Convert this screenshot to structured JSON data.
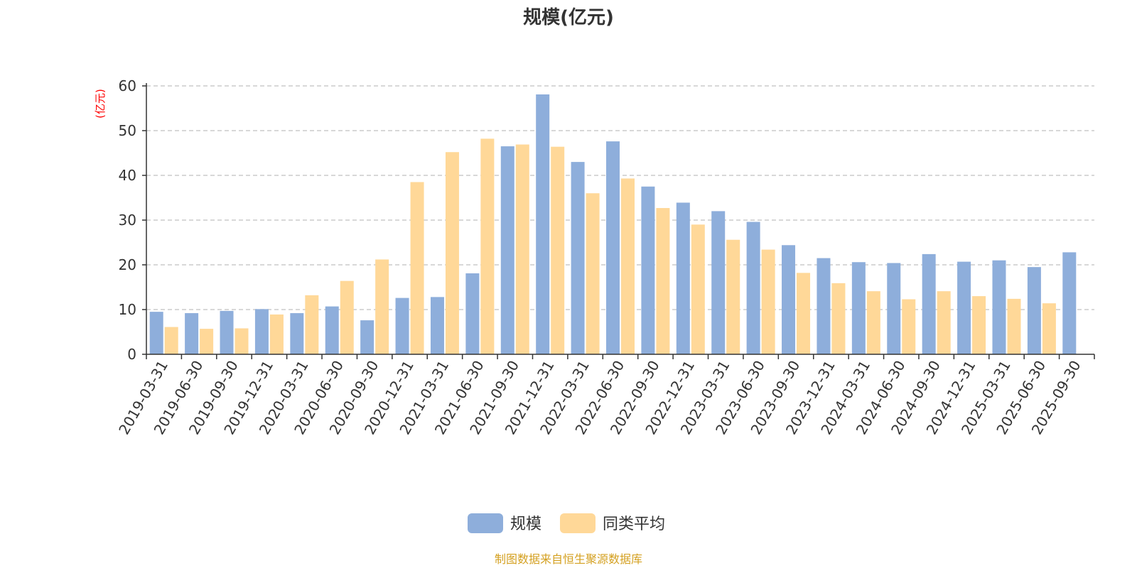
{
  "chart_data": {
    "type": "bar",
    "title": "规模(亿元)",
    "ylabel": "(亿元)",
    "xlabel": "",
    "ylim": [
      0,
      60
    ],
    "yticks": [
      0,
      10,
      20,
      30,
      40,
      50,
      60
    ],
    "grid": true,
    "legend_position": "bottom-center",
    "categories": [
      "2019-03-31",
      "2019-06-30",
      "2019-09-30",
      "2019-12-31",
      "2020-03-31",
      "2020-06-30",
      "2020-09-30",
      "2020-12-31",
      "2021-03-31",
      "2021-06-30",
      "2021-09-30",
      "2021-12-31",
      "2022-03-31",
      "2022-06-30",
      "2022-09-30",
      "2022-12-31",
      "2023-03-31",
      "2023-06-30",
      "2023-09-30",
      "2023-12-31",
      "2024-03-31",
      "2024-06-30",
      "2024-09-30",
      "2024-12-31",
      "2025-03-31",
      "2025-06-30",
      "2025-09-30"
    ],
    "series": [
      {
        "name": "规模",
        "color": "#8eaedb",
        "values": [
          9.5,
          9.2,
          9.7,
          10.1,
          9.2,
          10.7,
          7.6,
          12.6,
          12.8,
          18.1,
          46.5,
          58.1,
          43.0,
          47.6,
          37.5,
          33.9,
          32.0,
          29.6,
          24.4,
          21.5,
          20.6,
          20.4,
          22.4,
          20.7,
          21.0,
          19.5,
          22.8
        ]
      },
      {
        "name": "同类平均",
        "color": "#ffd898",
        "values": [
          6.1,
          5.7,
          5.8,
          8.9,
          13.2,
          16.4,
          21.2,
          38.5,
          45.2,
          48.2,
          46.9,
          46.4,
          36.0,
          39.3,
          32.7,
          29.0,
          25.6,
          23.4,
          18.2,
          15.9,
          14.1,
          12.3,
          14.1,
          13.0,
          12.4,
          11.4,
          null
        ]
      }
    ],
    "source": "制图数据来自恒生聚源数据库"
  }
}
